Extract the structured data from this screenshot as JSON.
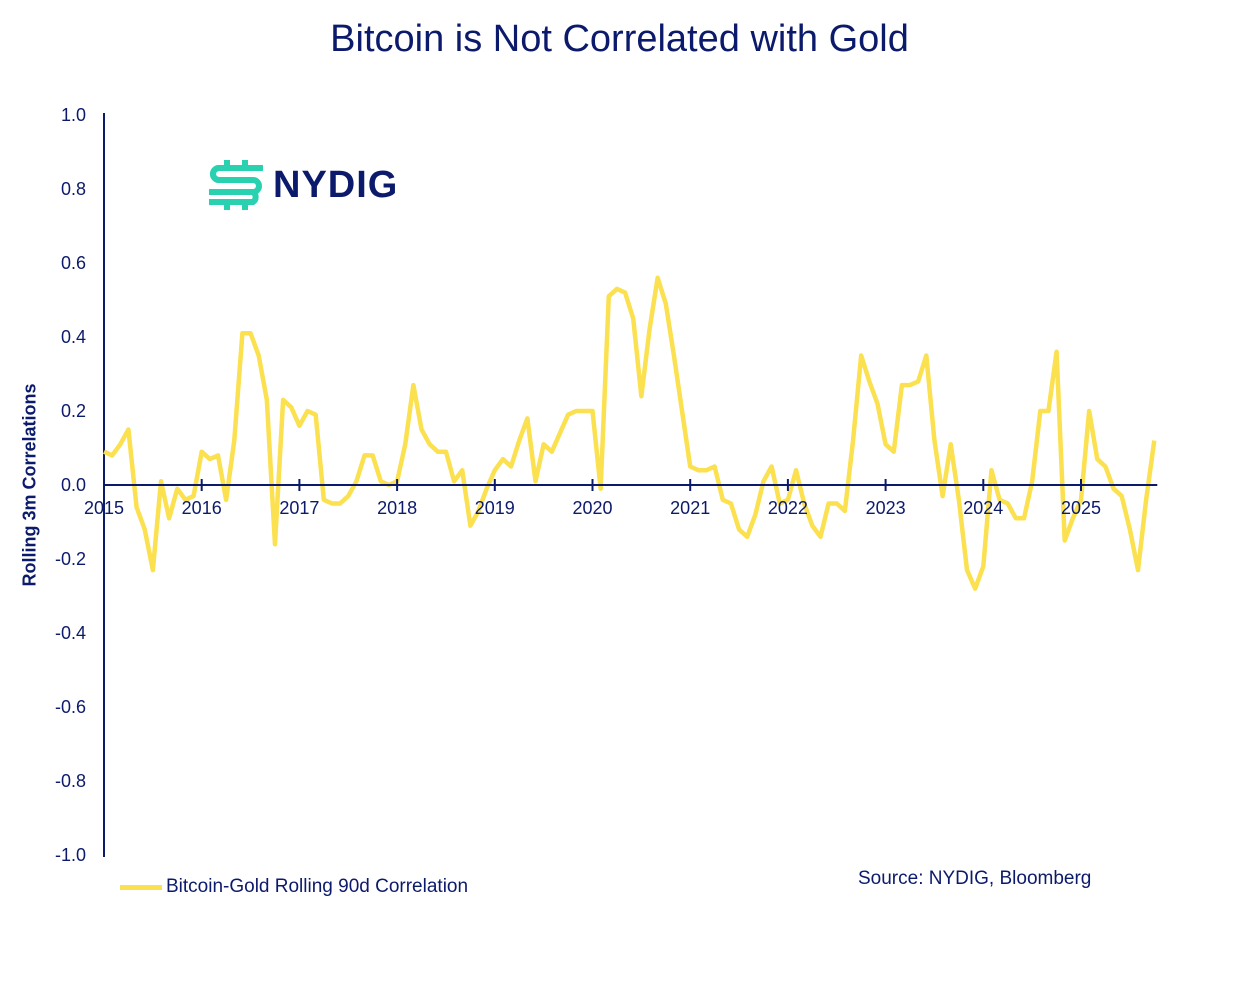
{
  "chart_data": {
    "type": "line",
    "title": "Bitcoin is Not Correlated with Gold",
    "xlabel": "",
    "ylabel": "Rolling 3m Correlations",
    "ylim": [
      -1.0,
      1.0
    ],
    "yticks": [
      "1.0",
      "0.8",
      "0.6",
      "0.4",
      "0.2",
      "0.0",
      "-0.2",
      "-0.4",
      "-0.6",
      "-0.8",
      "-1.0"
    ],
    "xticks": [
      "2015",
      "2016",
      "2017",
      "2018",
      "2019",
      "2020",
      "2021",
      "2022",
      "2023",
      "2024",
      "2025"
    ],
    "grid": false,
    "legend_position": "bottom-left",
    "source": "Source: NYDIG, Bloomberg",
    "logo_text": "NYDIG",
    "colors": {
      "line": "#fbe04f",
      "axis": "#0c1a6b",
      "logo_icon": "#2ad1b0"
    },
    "series": [
      {
        "name": "Bitcoin-Gold Rolling 90d Correlation",
        "start": "2015-01",
        "frequency": "monthly",
        "values": [
          0.09,
          0.08,
          0.11,
          0.15,
          -0.06,
          -0.12,
          -0.23,
          0.01,
          -0.09,
          -0.01,
          -0.04,
          -0.03,
          0.09,
          0.07,
          0.08,
          -0.04,
          0.12,
          0.41,
          0.41,
          0.35,
          0.23,
          -0.16,
          0.23,
          0.21,
          0.16,
          0.2,
          0.19,
          -0.04,
          -0.05,
          -0.05,
          -0.03,
          0.01,
          0.08,
          0.08,
          0.01,
          0.0,
          0.01,
          0.11,
          0.27,
          0.15,
          0.11,
          0.09,
          0.09,
          0.01,
          0.04,
          -0.11,
          -0.07,
          -0.01,
          0.04,
          0.07,
          0.05,
          0.12,
          0.18,
          0.01,
          0.11,
          0.09,
          0.14,
          0.19,
          0.2,
          0.2,
          0.2,
          -0.01,
          0.51,
          0.53,
          0.52,
          0.45,
          0.24,
          0.42,
          0.56,
          0.49,
          0.35,
          0.2,
          0.05,
          0.04,
          0.04,
          0.05,
          -0.04,
          -0.05,
          -0.12,
          -0.14,
          -0.08,
          0.01,
          0.05,
          -0.05,
          -0.04,
          0.04,
          -0.05,
          -0.11,
          -0.14,
          -0.05,
          -0.05,
          -0.07,
          0.12,
          0.35,
          0.28,
          0.22,
          0.11,
          0.09,
          0.27,
          0.27,
          0.28,
          0.35,
          0.12,
          -0.03,
          0.11,
          -0.04,
          -0.23,
          -0.28,
          -0.22,
          0.04,
          -0.04,
          -0.05,
          -0.09,
          -0.09,
          0.01,
          0.2,
          0.2,
          0.36,
          -0.15,
          -0.09,
          -0.04,
          0.2,
          0.07,
          0.05,
          -0.01,
          -0.03,
          -0.12,
          -0.23,
          -0.04,
          0.12
        ]
      }
    ]
  }
}
